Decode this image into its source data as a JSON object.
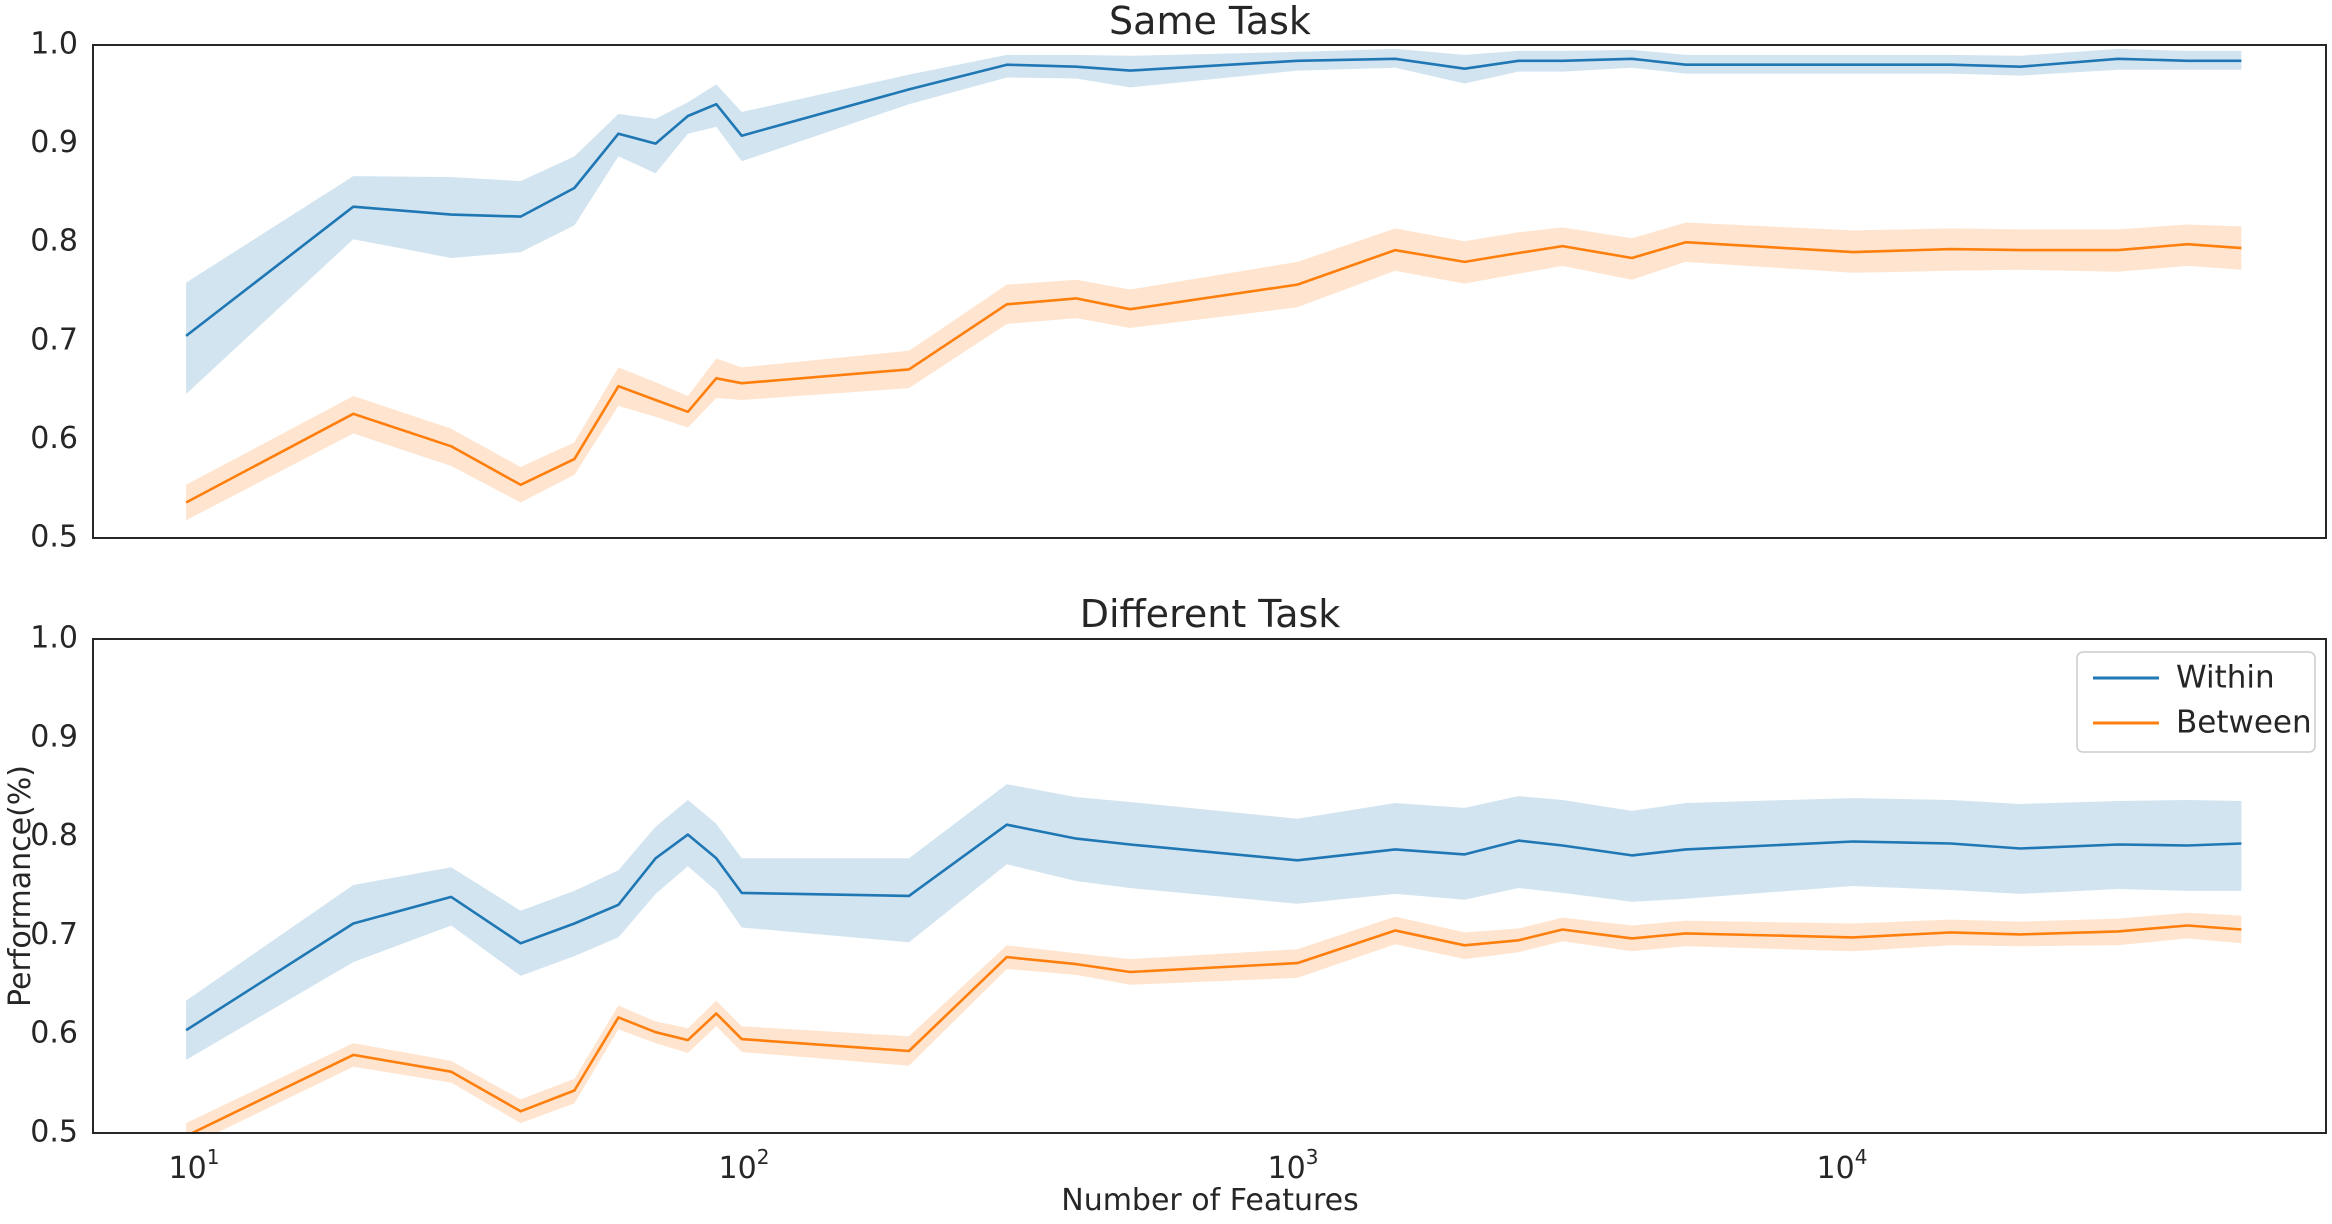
{
  "chart_data": [
    {
      "type": "line",
      "title": "Same Task",
      "xlabel": "",
      "ylabel": "",
      "xscale": "log",
      "xlim": [
        6.8,
        71000
      ],
      "ylim": [
        0.5,
        1.0
      ],
      "yticks": [
        "0.5",
        "0.6",
        "0.7",
        "0.8",
        "0.9",
        "1.0"
      ],
      "xticks_visible": false,
      "grid": false,
      "legend": false,
      "series": [
        {
          "name": "Within",
          "color": "#1f77b4",
          "band_color": "#1f77b4",
          "x": [
            10,
            20,
            30,
            40,
            50,
            60,
            70,
            80,
            90,
            100,
            200,
            300,
            400,
            500,
            1000,
            1500,
            2000,
            2500,
            3000,
            4000,
            5000,
            10000,
            15000,
            20000,
            30000,
            40000,
            50000
          ],
          "y": [
            0.705,
            0.836,
            0.828,
            0.826,
            0.855,
            0.91,
            0.9,
            0.928,
            0.94,
            0.908,
            0.955,
            0.98,
            0.978,
            0.974,
            0.984,
            0.986,
            0.976,
            0.984,
            0.984,
            0.986,
            0.98,
            0.98,
            0.98,
            0.978,
            0.986,
            0.984,
            0.984
          ],
          "lower": [
            0.646,
            0.803,
            0.784,
            0.79,
            0.817,
            0.887,
            0.87,
            0.91,
            0.917,
            0.882,
            0.94,
            0.967,
            0.966,
            0.957,
            0.974,
            0.977,
            0.961,
            0.973,
            0.973,
            0.977,
            0.971,
            0.971,
            0.971,
            0.969,
            0.975,
            0.975,
            0.975
          ],
          "upper": [
            0.759,
            0.867,
            0.866,
            0.862,
            0.887,
            0.93,
            0.925,
            0.942,
            0.96,
            0.932,
            0.97,
            0.99,
            0.99,
            0.989,
            0.993,
            0.996,
            0.99,
            0.994,
            0.994,
            0.995,
            0.99,
            0.99,
            0.99,
            0.989,
            0.996,
            0.994,
            0.994
          ]
        },
        {
          "name": "Between",
          "color": "#ff7f0e",
          "band_color": "#ff7f0e",
          "x": [
            10,
            20,
            30,
            40,
            50,
            60,
            70,
            80,
            90,
            100,
            200,
            300,
            400,
            500,
            1000,
            1500,
            2000,
            2500,
            3000,
            4000,
            5000,
            10000,
            15000,
            20000,
            30000,
            40000,
            50000
          ],
          "y": [
            0.536,
            0.626,
            0.593,
            0.554,
            0.58,
            0.654,
            0.64,
            0.628,
            0.662,
            0.657,
            0.671,
            0.737,
            0.743,
            0.732,
            0.757,
            0.792,
            0.78,
            0.789,
            0.796,
            0.784,
            0.8,
            0.79,
            0.793,
            0.792,
            0.792,
            0.798,
            0.794
          ],
          "lower": [
            0.518,
            0.606,
            0.573,
            0.536,
            0.564,
            0.634,
            0.623,
            0.612,
            0.642,
            0.64,
            0.652,
            0.717,
            0.723,
            0.713,
            0.734,
            0.771,
            0.758,
            0.768,
            0.776,
            0.762,
            0.78,
            0.769,
            0.771,
            0.772,
            0.77,
            0.776,
            0.772
          ],
          "upper": [
            0.554,
            0.644,
            0.611,
            0.572,
            0.597,
            0.673,
            0.658,
            0.644,
            0.682,
            0.673,
            0.69,
            0.757,
            0.762,
            0.752,
            0.78,
            0.814,
            0.801,
            0.81,
            0.815,
            0.804,
            0.82,
            0.812,
            0.814,
            0.813,
            0.813,
            0.818,
            0.816
          ]
        }
      ]
    },
    {
      "type": "line",
      "title": "Different Task",
      "xlabel": "Number of Features",
      "ylabel": "Performance(%)",
      "xscale": "log",
      "xlim": [
        6.8,
        71000
      ],
      "ylim": [
        0.5,
        1.0
      ],
      "yticks": [
        "0.5",
        "0.6",
        "0.7",
        "0.8",
        "0.9",
        "1.0"
      ],
      "xticks": [
        {
          "value": 10,
          "base": "10",
          "exp": "1"
        },
        {
          "value": 100,
          "base": "10",
          "exp": "2"
        },
        {
          "value": 1000,
          "base": "10",
          "exp": "3"
        },
        {
          "value": 10000,
          "base": "10",
          "exp": "4"
        }
      ],
      "grid": false,
      "legend": true,
      "legend_position": "upper right",
      "series": [
        {
          "name": "Within",
          "color": "#1f77b4",
          "band_color": "#1f77b4",
          "x": [
            10,
            20,
            30,
            40,
            50,
            60,
            70,
            80,
            90,
            100,
            200,
            300,
            400,
            500,
            1000,
            1500,
            2000,
            2500,
            3000,
            4000,
            5000,
            10000,
            15000,
            20000,
            30000,
            40000,
            50000
          ],
          "y": [
            0.604,
            0.712,
            0.739,
            0.692,
            0.712,
            0.731,
            0.778,
            0.802,
            0.778,
            0.743,
            0.74,
            0.812,
            0.798,
            0.792,
            0.776,
            0.787,
            0.782,
            0.796,
            0.791,
            0.781,
            0.787,
            0.795,
            0.793,
            0.788,
            0.792,
            0.791,
            0.793
          ],
          "lower": [
            0.574,
            0.673,
            0.71,
            0.659,
            0.679,
            0.698,
            0.742,
            0.77,
            0.745,
            0.708,
            0.693,
            0.772,
            0.755,
            0.748,
            0.732,
            0.742,
            0.736,
            0.748,
            0.743,
            0.734,
            0.737,
            0.75,
            0.746,
            0.742,
            0.747,
            0.745,
            0.745
          ],
          "upper": [
            0.634,
            0.751,
            0.769,
            0.725,
            0.745,
            0.766,
            0.81,
            0.837,
            0.813,
            0.778,
            0.778,
            0.853,
            0.84,
            0.835,
            0.818,
            0.834,
            0.829,
            0.841,
            0.837,
            0.826,
            0.834,
            0.839,
            0.837,
            0.833,
            0.836,
            0.837,
            0.836
          ]
        },
        {
          "name": "Between",
          "color": "#ff7f0e",
          "band_color": "#ff7f0e",
          "x": [
            10,
            20,
            30,
            40,
            50,
            60,
            70,
            80,
            90,
            100,
            200,
            300,
            400,
            500,
            1000,
            1500,
            2000,
            2500,
            3000,
            4000,
            5000,
            10000,
            15000,
            20000,
            30000,
            40000,
            50000
          ],
          "y": [
            0.497,
            0.579,
            0.562,
            0.522,
            0.543,
            0.617,
            0.602,
            0.594,
            0.621,
            0.595,
            0.583,
            0.678,
            0.671,
            0.663,
            0.672,
            0.705,
            0.69,
            0.695,
            0.706,
            0.697,
            0.702,
            0.698,
            0.703,
            0.701,
            0.704,
            0.71,
            0.706
          ],
          "lower": [
            0.485,
            0.567,
            0.551,
            0.51,
            0.53,
            0.605,
            0.591,
            0.581,
            0.608,
            0.582,
            0.568,
            0.666,
            0.66,
            0.65,
            0.657,
            0.691,
            0.676,
            0.683,
            0.694,
            0.684,
            0.689,
            0.684,
            0.69,
            0.689,
            0.69,
            0.697,
            0.692
          ],
          "upper": [
            0.51,
            0.591,
            0.573,
            0.534,
            0.555,
            0.629,
            0.613,
            0.606,
            0.634,
            0.608,
            0.598,
            0.69,
            0.682,
            0.676,
            0.686,
            0.719,
            0.703,
            0.707,
            0.718,
            0.71,
            0.715,
            0.712,
            0.716,
            0.714,
            0.717,
            0.723,
            0.72
          ]
        }
      ]
    }
  ]
}
